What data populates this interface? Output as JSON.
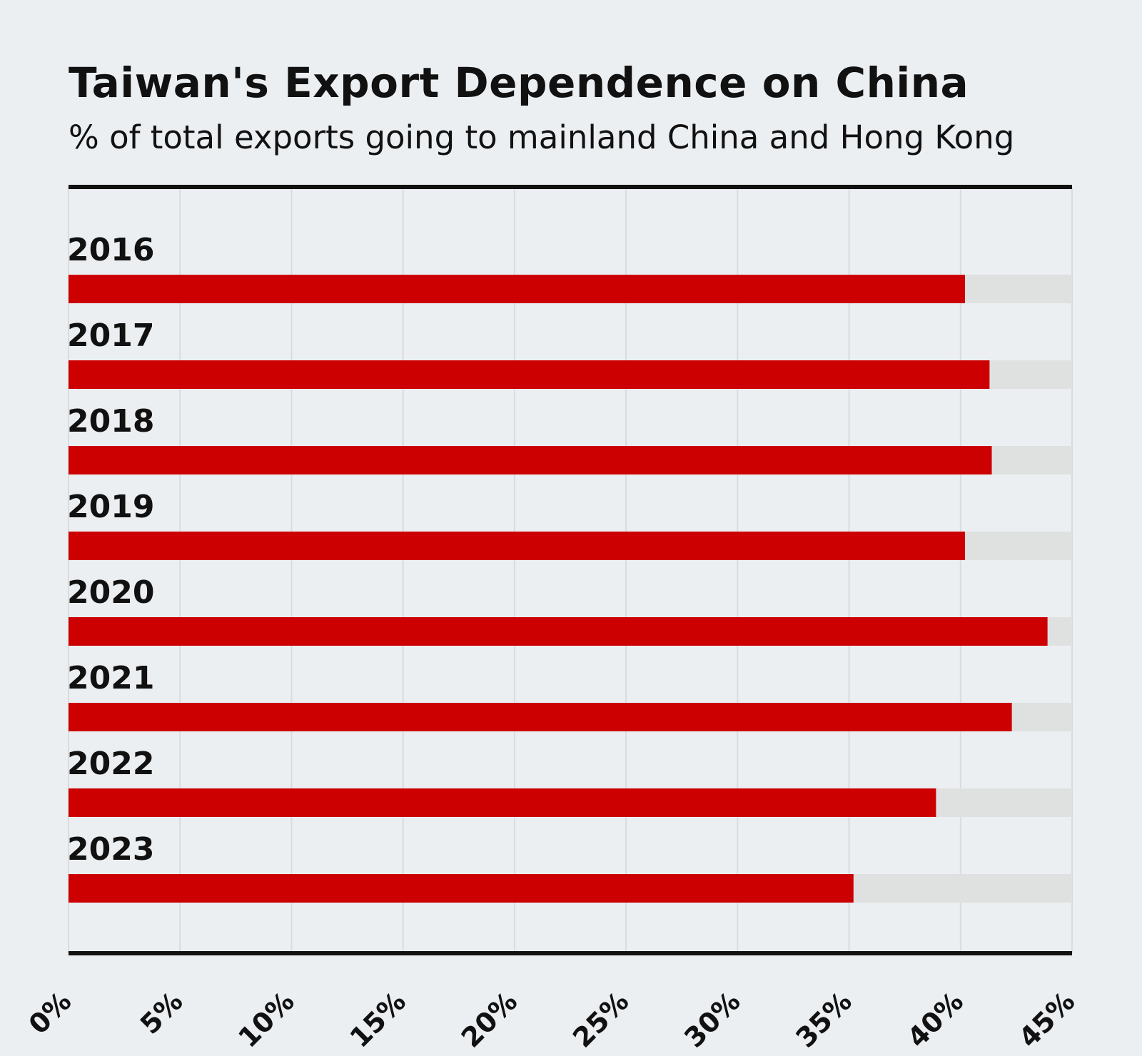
{
  "chart_data": {
    "type": "bar",
    "orientation": "horizontal",
    "title": "Taiwan's Export Dependence on China",
    "subtitle": "% of total exports going to mainland China and Hong Kong",
    "categories": [
      "2016",
      "2017",
      "2018",
      "2019",
      "2020",
      "2021",
      "2022",
      "2023"
    ],
    "values": [
      40.2,
      41.3,
      41.4,
      40.2,
      43.9,
      42.3,
      38.9,
      35.2
    ],
    "xlim": [
      0,
      45
    ],
    "x_ticks": [
      "0%",
      "5%",
      "10%",
      "15%",
      "20%",
      "25%",
      "30%",
      "35%",
      "40%",
      "45%"
    ],
    "grid": true,
    "legend": "none",
    "colors": {
      "bar": "#cc0000",
      "track": "#dfe1e1",
      "grid": "#d8dcdf",
      "axis": "#111111",
      "background": "#eceff2"
    }
  }
}
